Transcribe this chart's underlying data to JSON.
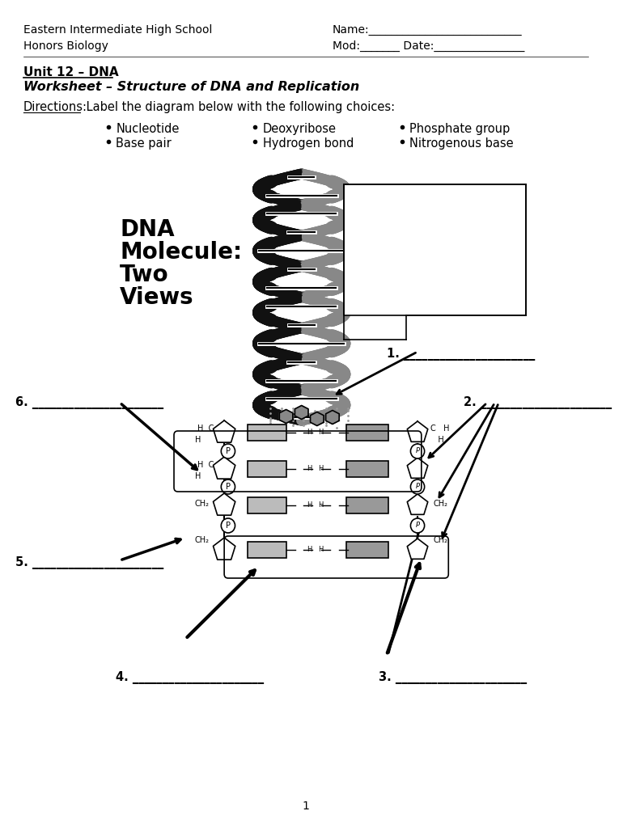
{
  "bg_color": "#ffffff",
  "school_line1": "Eastern Intermediate High School",
  "school_line2": "Honors Biology",
  "name_line": "Name:___________________________",
  "mod_date_line": "Mod:_______ Date:________________",
  "unit_title": "Unit 12 – DNA",
  "worksheet_title": "Worksheet – Structure of DNA and Replication",
  "directions": "Directions: Label the diagram below with the following choices:",
  "bullet_col1": [
    "Nucleotide",
    "Base pair"
  ],
  "bullet_col2": [
    "Deoxyribose",
    "Hydrogen bond"
  ],
  "bullet_col3": [
    "Phosphate group",
    "Nitrogenous base"
  ],
  "label1": "1. ______________________",
  "label2": "2. ______________________",
  "label3": "3. ______________________",
  "label4": "4. ______________________",
  "label5": "5. ______________________",
  "label6": "6. ______________________",
  "page_number": "1"
}
